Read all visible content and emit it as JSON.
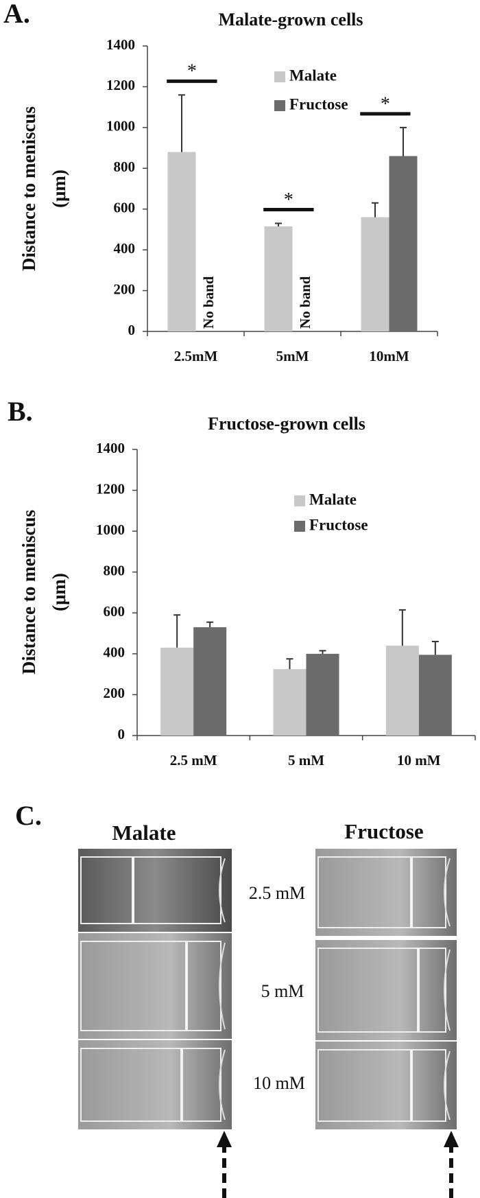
{
  "chart_data": [
    {
      "type": "bar",
      "panel_label": "A.",
      "title": "Malate-grown cells",
      "ylabel": [
        "Distance to meniscus",
        "(μm)"
      ],
      "categories": [
        "2.5mM",
        "5mM",
        "10mM"
      ],
      "series": [
        {
          "name": "Malate",
          "color": "#c8c8c8",
          "values": [
            880,
            515,
            560
          ],
          "errors": [
            280,
            15,
            70
          ]
        },
        {
          "name": "Fructose",
          "color": "#6b6b6b",
          "values": [
            null,
            null,
            860
          ],
          "errors": [
            null,
            null,
            140
          ]
        }
      ],
      "significance": [
        "*",
        "*",
        "*"
      ],
      "annotations": [
        {
          "text": "No band",
          "series": 1,
          "category": 0
        },
        {
          "text": "No band",
          "series": 1,
          "category": 1
        }
      ],
      "ylim": [
        0,
        1400
      ],
      "yticks": [
        0,
        200,
        400,
        600,
        800,
        1000,
        1200,
        1400
      ],
      "grid": false
    },
    {
      "type": "bar",
      "panel_label": "B.",
      "title": "Fructose-grown cells",
      "ylabel": [
        "Distance to meniscus",
        "(μm)"
      ],
      "categories": [
        "2.5 mM",
        "5 mM",
        "10 mM"
      ],
      "series": [
        {
          "name": "Malate",
          "color": "#c8c8c8",
          "values": [
            430,
            325,
            440
          ],
          "errors": [
            160,
            50,
            175
          ]
        },
        {
          "name": "Fructose",
          "color": "#6b6b6b",
          "values": [
            530,
            400,
            395
          ],
          "errors": [
            25,
            15,
            65
          ]
        }
      ],
      "ylim": [
        0,
        1400
      ],
      "yticks": [
        0,
        200,
        400,
        600,
        800,
        1000,
        1200,
        1400
      ],
      "grid": false
    }
  ],
  "photo_panel": {
    "panel_label": "C.",
    "columns": [
      "Malate",
      "Fructose"
    ],
    "rows": [
      "2.5 mM",
      "5 mM",
      "10 mM"
    ]
  }
}
